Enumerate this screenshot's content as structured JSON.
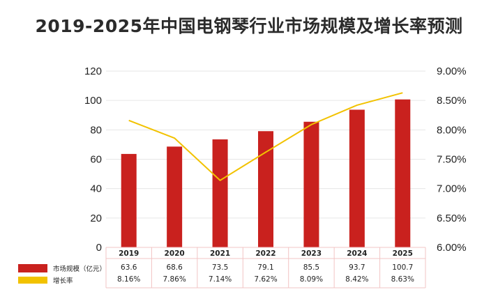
{
  "chart_data": {
    "type": "bar",
    "title": "2019-2025年中国电钢琴行业市场规模及增长率预测",
    "categories": [
      "2019",
      "2020",
      "2021",
      "2022",
      "2023",
      "2024",
      "2025"
    ],
    "series": [
      {
        "name": "市场规模（亿元）",
        "type": "bar",
        "axis": "left",
        "color": "#c9211e",
        "values": [
          63.6,
          68.6,
          73.5,
          79.1,
          85.5,
          93.7,
          100.7
        ],
        "labels": [
          "63.6",
          "68.6",
          "73.5",
          "79.1",
          "85.5",
          "93.7",
          "100.7"
        ]
      },
      {
        "name": "增长率",
        "type": "line",
        "axis": "right",
        "color": "#f2c200",
        "values": [
          8.16,
          7.86,
          7.14,
          7.62,
          8.09,
          8.42,
          8.63
        ],
        "labels": [
          "8.16%",
          "7.86%",
          "7.14%",
          "7.62%",
          "8.09%",
          "8.42%",
          "8.63%"
        ]
      }
    ],
    "ylim_left": [
      0,
      120
    ],
    "yticks_left": [
      "0",
      "20",
      "40",
      "60",
      "80",
      "100",
      "120"
    ],
    "ylim_right": [
      6.0,
      9.0
    ],
    "yticks_right": [
      "6.00%",
      "6.50%",
      "7.00%",
      "7.50%",
      "8.00%",
      "8.50%",
      "9.00%"
    ],
    "grid": true,
    "legend_position": "bottom-left",
    "data_table": true
  }
}
